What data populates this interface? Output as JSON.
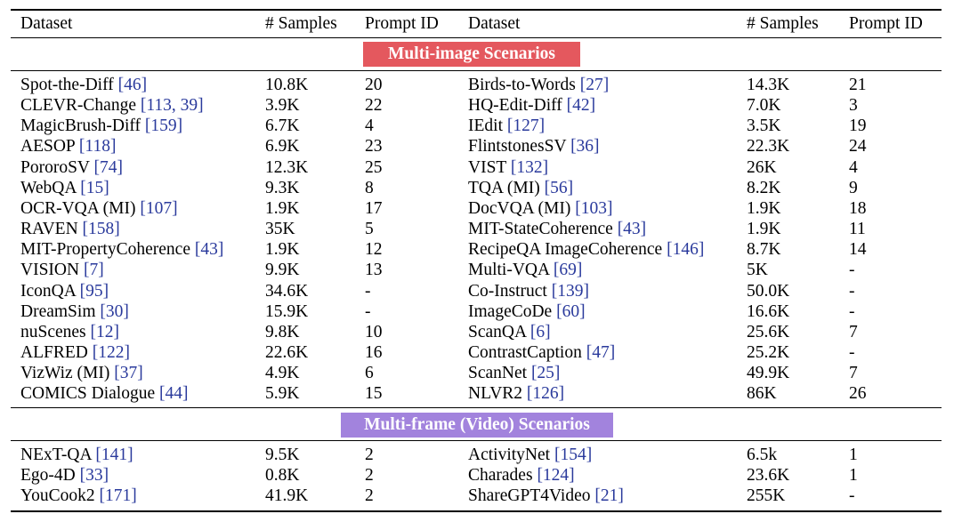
{
  "colors": {
    "multi_image_banner": "#e4585e",
    "multi_frame_banner": "#a283dd",
    "citation": "#2a3a9c"
  },
  "header": {
    "left": {
      "dataset": "Dataset",
      "samples": "# Samples",
      "prompt": "Prompt ID"
    },
    "right": {
      "dataset": "Dataset",
      "samples": "# Samples",
      "prompt": "Prompt ID"
    }
  },
  "sections": [
    {
      "title": "Multi-image Scenarios",
      "rows": [
        {
          "left": {
            "name": "Spot-the-Diff",
            "cite": "[46]",
            "samples": "10.8K",
            "prompt": "20"
          },
          "right": {
            "name": "Birds-to-Words",
            "cite": "[27]",
            "samples": "14.3K",
            "prompt": "21"
          }
        },
        {
          "left": {
            "name": "CLEVR-Change",
            "cite": "[113, 39]",
            "samples": "3.9K",
            "prompt": "22"
          },
          "right": {
            "name": "HQ-Edit-Diff",
            "cite": "[42]",
            "samples": "7.0K",
            "prompt": "3"
          }
        },
        {
          "left": {
            "name": "MagicBrush-Diff",
            "cite": "[159]",
            "samples": "6.7K",
            "prompt": "4"
          },
          "right": {
            "name": "IEdit",
            "cite": "[127]",
            "samples": "3.5K",
            "prompt": "19"
          }
        },
        {
          "left": {
            "name": "AESOP",
            "cite": "[118]",
            "samples": "6.9K",
            "prompt": "23"
          },
          "right": {
            "name": "FlintstonesSV",
            "cite": "[36]",
            "samples": "22.3K",
            "prompt": "24"
          }
        },
        {
          "left": {
            "name": "PororoSV",
            "cite": "[74]",
            "samples": "12.3K",
            "prompt": "25"
          },
          "right": {
            "name": "VIST",
            "cite": "[132]",
            "samples": "26K",
            "prompt": "4"
          }
        },
        {
          "left": {
            "name": "WebQA",
            "cite": "[15]",
            "samples": "9.3K",
            "prompt": "8"
          },
          "right": {
            "name": "TQA (MI)",
            "cite": "[56]",
            "samples": "8.2K",
            "prompt": "9"
          }
        },
        {
          "left": {
            "name": "OCR-VQA (MI)",
            "cite": "[107]",
            "samples": "1.9K",
            "prompt": "17"
          },
          "right": {
            "name": "DocVQA (MI)",
            "cite": "[103]",
            "samples": "1.9K",
            "prompt": "18"
          }
        },
        {
          "left": {
            "name": "RAVEN",
            "cite": "[158]",
            "samples": "35K",
            "prompt": "5"
          },
          "right": {
            "name": "MIT-StateCoherence",
            "cite": "[43]",
            "samples": "1.9K",
            "prompt": "11"
          }
        },
        {
          "left": {
            "name": "MIT-PropertyCoherence",
            "cite": "[43]",
            "samples": "1.9K",
            "prompt": "12"
          },
          "right": {
            "name": "RecipeQA ImageCoherence",
            "cite": "[146]",
            "samples": "8.7K",
            "prompt": "14"
          }
        },
        {
          "left": {
            "name": "VISION",
            "cite": "[7]",
            "samples": "9.9K",
            "prompt": "13"
          },
          "right": {
            "name": "Multi-VQA",
            "cite": "[69]",
            "samples": "5K",
            "prompt": "-"
          }
        },
        {
          "left": {
            "name": "IconQA",
            "cite": "[95]",
            "samples": "34.6K",
            "prompt": "-"
          },
          "right": {
            "name": "Co-Instruct",
            "cite": "[139]",
            "samples": "50.0K",
            "prompt": "-"
          }
        },
        {
          "left": {
            "name": "DreamSim",
            "cite": "[30]",
            "samples": "15.9K",
            "prompt": "-"
          },
          "right": {
            "name": "ImageCoDe",
            "cite": "[60]",
            "samples": "16.6K",
            "prompt": "-"
          }
        },
        {
          "left": {
            "name": "nuScenes",
            "cite": "[12]",
            "samples": "9.8K",
            "prompt": "10"
          },
          "right": {
            "name": "ScanQA",
            "cite": "[6]",
            "samples": "25.6K",
            "prompt": "7"
          }
        },
        {
          "left": {
            "name": "ALFRED",
            "cite": "[122]",
            "samples": "22.6K",
            "prompt": "16"
          },
          "right": {
            "name": "ContrastCaption",
            "cite": "[47]",
            "samples": "25.2K",
            "prompt": "-"
          }
        },
        {
          "left": {
            "name": "VizWiz (MI)",
            "cite": "[37]",
            "samples": "4.9K",
            "prompt": "6"
          },
          "right": {
            "name": "ScanNet",
            "cite": "[25]",
            "samples": "49.9K",
            "prompt": "7"
          }
        },
        {
          "left": {
            "name": "COMICS Dialogue",
            "cite": "[44]",
            "samples": "5.9K",
            "prompt": "15"
          },
          "right": {
            "name": "NLVR2",
            "cite": "[126]",
            "samples": "86K",
            "prompt": "26"
          }
        }
      ]
    },
    {
      "title": "Multi-frame (Video) Scenarios",
      "rows": [
        {
          "left": {
            "name": "NExT-QA",
            "cite": "[141]",
            "samples": "9.5K",
            "prompt": "2"
          },
          "right": {
            "name": "ActivityNet",
            "cite": "[154]",
            "samples": "6.5k",
            "prompt": "1"
          }
        },
        {
          "left": {
            "name": "Ego-4D",
            "cite": "[33]",
            "samples": "0.8K",
            "prompt": "2"
          },
          "right": {
            "name": "Charades",
            "cite": "[124]",
            "samples": "23.6K",
            "prompt": "1"
          }
        },
        {
          "left": {
            "name": "YouCook2",
            "cite": "[171]",
            "samples": "41.9K",
            "prompt": "2"
          },
          "right": {
            "name": "ShareGPT4Video",
            "cite": "[21]",
            "samples": "255K",
            "prompt": "-"
          }
        }
      ]
    }
  ]
}
